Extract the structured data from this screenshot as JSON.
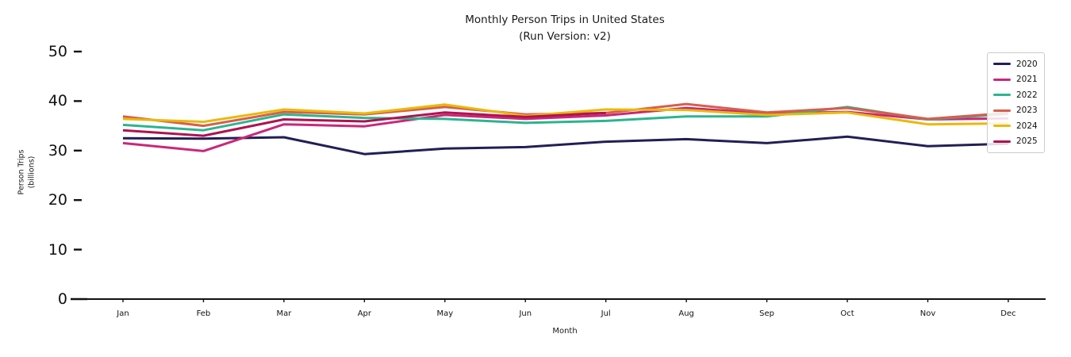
{
  "chart_data": {
    "type": "line",
    "title": "Monthly Person Trips in United States",
    "subtitle": "(Run Version: v2)",
    "xlabel": "Month",
    "ylabel_lines": [
      "Person Trips",
      "(billions)"
    ],
    "categories": [
      "Jan",
      "Feb",
      "Mar",
      "Apr",
      "May",
      "Jun",
      "Jul",
      "Aug",
      "Sep",
      "Oct",
      "Nov",
      "Dec"
    ],
    "yticks": [
      0,
      10,
      20,
      30,
      40,
      50
    ],
    "ylim": [
      0,
      51.5
    ],
    "grid": false,
    "legend_position": "upper right",
    "axis_color": "#111111",
    "series": [
      {
        "name": "2020",
        "color": "#211f54",
        "values": [
          32.5,
          32.4,
          32.7,
          29.3,
          30.4,
          30.7,
          31.8,
          32.3,
          31.5,
          32.8,
          30.9,
          31.4
        ]
      },
      {
        "name": "2021",
        "color": "#ca2779",
        "values": [
          31.5,
          29.9,
          35.3,
          34.9,
          37.2,
          36.4,
          37.1,
          38.6,
          37.5,
          37.8,
          36.3,
          36.5
        ]
      },
      {
        "name": "2022",
        "color": "#2bb58f",
        "values": [
          35.2,
          34.1,
          37.3,
          36.6,
          36.4,
          35.6,
          36.0,
          36.9,
          36.9,
          38.8,
          36.3,
          37.4
        ]
      },
      {
        "name": "2023",
        "color": "#d65f4d",
        "values": [
          36.9,
          35.0,
          37.8,
          37.3,
          38.8,
          37.3,
          37.6,
          39.4,
          37.7,
          38.6,
          36.4,
          37.6
        ]
      },
      {
        "name": "2024",
        "color": "#e9b90c",
        "values": [
          36.4,
          35.8,
          38.3,
          37.5,
          39.3,
          37.0,
          38.3,
          38.2,
          37.2,
          37.7,
          35.3,
          35.5
        ]
      },
      {
        "name": "2025",
        "color": "#b01251",
        "values": [
          34.1,
          33.0,
          36.3,
          35.9,
          37.7,
          36.8,
          37.6
        ]
      }
    ]
  }
}
